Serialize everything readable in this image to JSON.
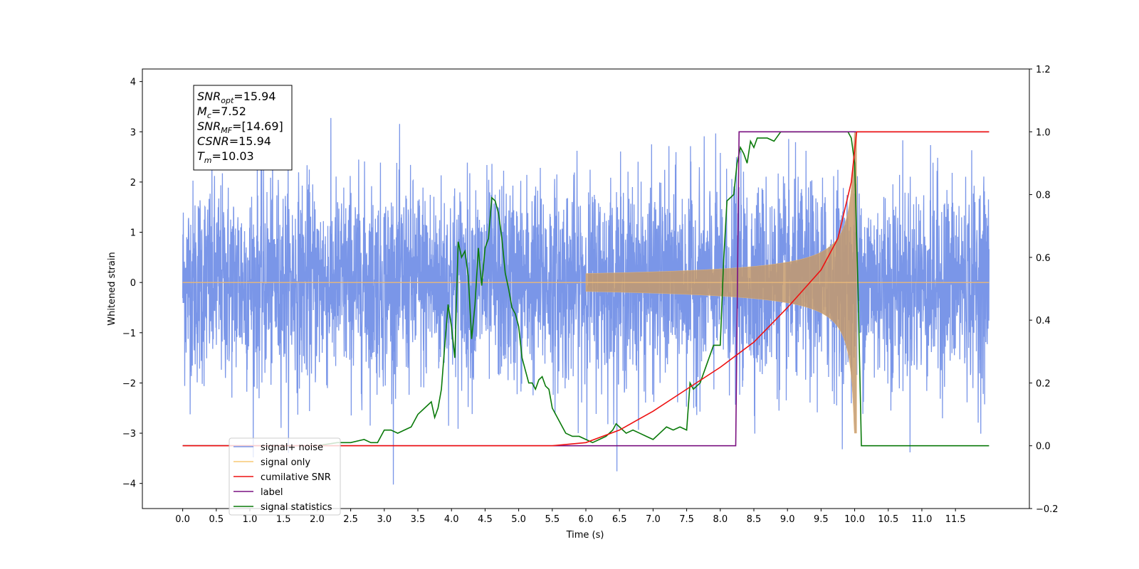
{
  "chart_data": {
    "type": "line",
    "title": "",
    "xlabel": "Time (s)",
    "ylabel": "Whitened strain",
    "xlim": [
      -0.6,
      12.6
    ],
    "ylim": [
      -4.5,
      4.25
    ],
    "y2lim": [
      -0.2,
      1.2
    ],
    "grid": false,
    "legend_position": "lower-left",
    "x_ticks": [
      "0.0",
      "0.5",
      "1.0",
      "1.5",
      "2.0",
      "2.5",
      "3.0",
      "3.5",
      "4.0",
      "4.5",
      "5.0",
      "5.5",
      "6.0",
      "6.5",
      "7.0",
      "7.5",
      "8.0",
      "8.5",
      "9.0",
      "9.5",
      "10.0",
      "10.5",
      "11.0",
      "11.5"
    ],
    "y_ticks": [
      "4",
      "3",
      "2",
      "1",
      "0",
      "−1",
      "−2",
      "−3",
      "−4"
    ],
    "y2_ticks": [
      "1.2",
      "1.0",
      "0.8",
      "0.6",
      "0.4",
      "0.2",
      "0.0",
      "−0.2"
    ],
    "annotation": {
      "snr_opt": {
        "name": "SNR",
        "sub": "opt",
        "value": "=15.94"
      },
      "mc": {
        "name": "M",
        "sub": "c",
        "value": "=7.52"
      },
      "snr_mf": {
        "name": "SNR",
        "sub": "MF",
        "value": "=[14.69]"
      },
      "csnr": {
        "name": "CSNR",
        "sub": "",
        "value": "=15.94"
      },
      "tm": {
        "name": "T",
        "sub": "m",
        "value": "=10.03"
      }
    },
    "series": [
      {
        "name": "signal+ noise",
        "color": "#7a96e8",
        "axis": "left",
        "description_only": true,
        "noise_std": 1.0,
        "x_range": [
          0.0,
          12.0
        ]
      },
      {
        "name": "signal only",
        "color": "#e8b878",
        "axis": "left",
        "chirp_start": 6.0,
        "chirp_end": 10.03,
        "amplitude_at_end": 3.0
      },
      {
        "name": "cumilative SNR",
        "color": "#ee1111",
        "axis": "right",
        "x": [
          0.0,
          5.5,
          6.0,
          6.5,
          7.0,
          7.5,
          8.0,
          8.5,
          9.0,
          9.5,
          9.75,
          9.95,
          10.03,
          10.05,
          12.0
        ],
        "y": [
          0.0,
          0.0,
          0.01,
          0.05,
          0.11,
          0.18,
          0.25,
          0.33,
          0.44,
          0.56,
          0.66,
          0.84,
          1.0,
          1.0,
          1.0
        ]
      },
      {
        "name": "label",
        "color": "#7a1080",
        "axis": "right",
        "x": [
          0.0,
          8.23,
          8.28,
          10.0,
          10.03,
          12.0
        ],
        "y": [
          0.0,
          0.0,
          1.0,
          1.0,
          1.0,
          1.0
        ]
      },
      {
        "name": "signal statistics",
        "color": "#0a7a0a",
        "axis": "right",
        "x": [
          0.0,
          1.5,
          2.0,
          2.3,
          2.5,
          2.7,
          2.8,
          2.9,
          3.0,
          3.1,
          3.2,
          3.3,
          3.4,
          3.5,
          3.6,
          3.7,
          3.75,
          3.8,
          3.85,
          3.9,
          3.95,
          4.0,
          4.05,
          4.1,
          4.15,
          4.2,
          4.25,
          4.3,
          4.35,
          4.4,
          4.45,
          4.5,
          4.55,
          4.6,
          4.65,
          4.7,
          4.75,
          4.8,
          4.85,
          4.9,
          4.95,
          5.0,
          5.05,
          5.1,
          5.15,
          5.2,
          5.25,
          5.3,
          5.35,
          5.4,
          5.45,
          5.5,
          5.6,
          5.7,
          5.8,
          5.9,
          6.0,
          6.1,
          6.2,
          6.3,
          6.4,
          6.45,
          6.5,
          6.6,
          6.7,
          6.8,
          6.9,
          7.0,
          7.1,
          7.2,
          7.3,
          7.4,
          7.5,
          7.55,
          7.6,
          7.7,
          7.8,
          7.9,
          8.0,
          8.05,
          8.1,
          8.2,
          8.25,
          8.3,
          8.35,
          8.4,
          8.45,
          8.5,
          8.55,
          8.6,
          8.7,
          8.8,
          8.9,
          9.0,
          9.2,
          9.5,
          9.8,
          9.9,
          9.95,
          10.0,
          10.05,
          10.1,
          12.0
        ],
        "y": [
          0.0,
          0.0,
          0.0,
          0.01,
          0.01,
          0.02,
          0.01,
          0.01,
          0.05,
          0.05,
          0.04,
          0.05,
          0.06,
          0.1,
          0.12,
          0.14,
          0.09,
          0.12,
          0.18,
          0.32,
          0.45,
          0.38,
          0.28,
          0.65,
          0.6,
          0.62,
          0.54,
          0.34,
          0.45,
          0.63,
          0.51,
          0.63,
          0.66,
          0.79,
          0.78,
          0.74,
          0.66,
          0.55,
          0.5,
          0.44,
          0.42,
          0.38,
          0.28,
          0.24,
          0.2,
          0.2,
          0.18,
          0.21,
          0.22,
          0.19,
          0.18,
          0.12,
          0.08,
          0.04,
          0.03,
          0.03,
          0.02,
          0.01,
          0.02,
          0.03,
          0.05,
          0.07,
          0.06,
          0.04,
          0.05,
          0.04,
          0.03,
          0.02,
          0.04,
          0.06,
          0.05,
          0.06,
          0.05,
          0.2,
          0.18,
          0.2,
          0.26,
          0.32,
          0.32,
          0.59,
          0.78,
          0.8,
          0.9,
          0.95,
          0.93,
          0.9,
          0.97,
          0.95,
          0.98,
          0.98,
          0.98,
          0.97,
          1.0,
          1.0,
          1.0,
          1.0,
          1.0,
          1.0,
          0.98,
          0.9,
          0.5,
          0.0,
          0.0
        ]
      }
    ],
    "legend": [
      {
        "label": "signal+ noise",
        "color": "#7a96e8"
      },
      {
        "label": "signal only",
        "color": "#f7c875"
      },
      {
        "label": "cumilative SNR",
        "color": "#ee1111"
      },
      {
        "label": "label",
        "color": "#7a1080"
      },
      {
        "label": "signal statistics",
        "color": "#0a7a0a"
      }
    ]
  }
}
